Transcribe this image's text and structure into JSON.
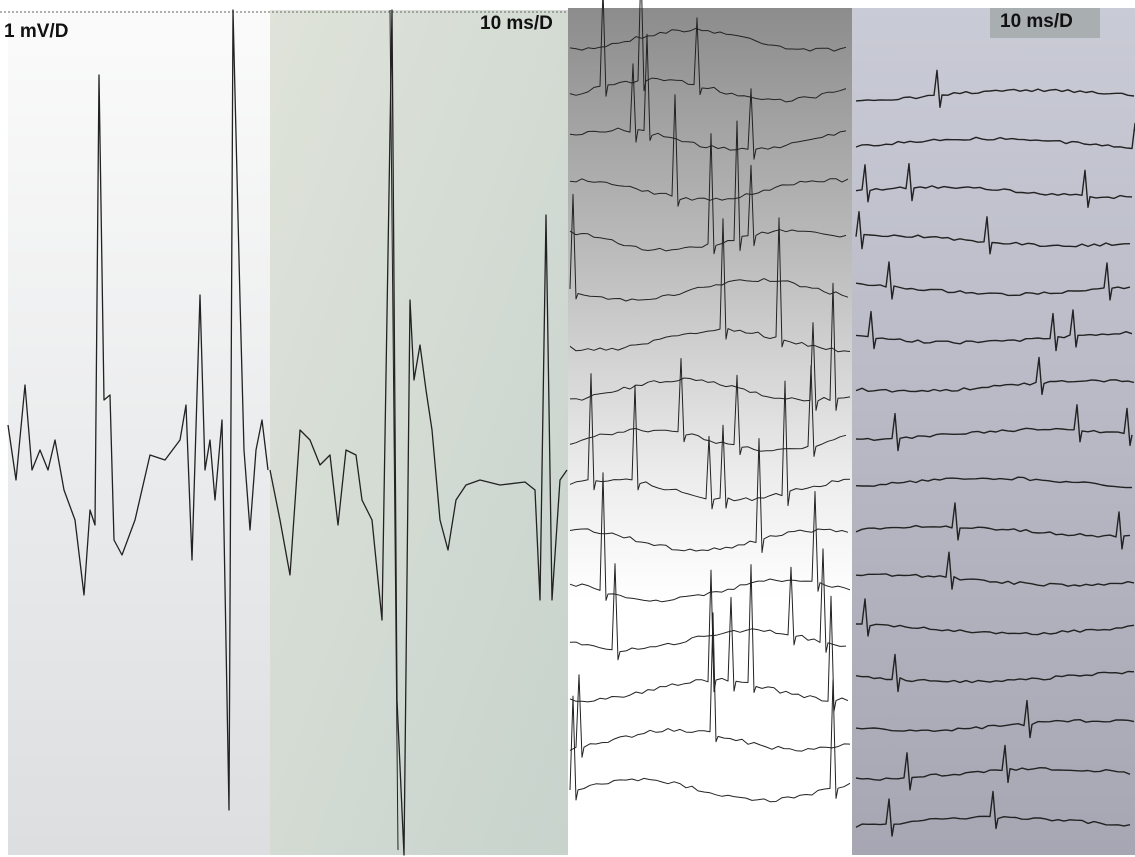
{
  "labels": [
    "1 mV/D",
    "10 ms/D",
    "10 ms/D"
  ]
}
